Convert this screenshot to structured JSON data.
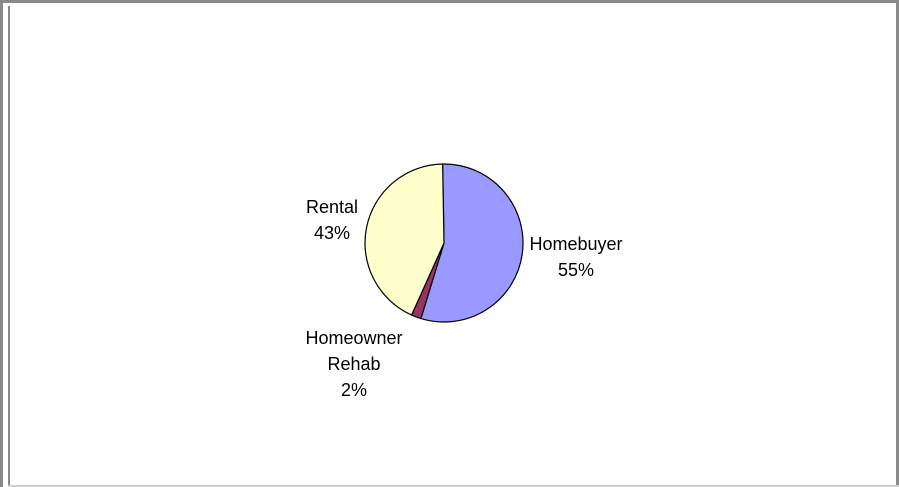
{
  "chart_data": {
    "type": "pie",
    "title": "",
    "slices": [
      {
        "label": [
          "Homebuyer"
        ],
        "value": 55,
        "value_label": "55%",
        "color": "#9999ff"
      },
      {
        "label": [
          "Homeowner",
          "Rehab"
        ],
        "value": 2,
        "value_label": "2%",
        "color": "#993366"
      },
      {
        "label": [
          "Rental"
        ],
        "value": 43,
        "value_label": "43%",
        "color": "#ffffcc"
      }
    ]
  }
}
